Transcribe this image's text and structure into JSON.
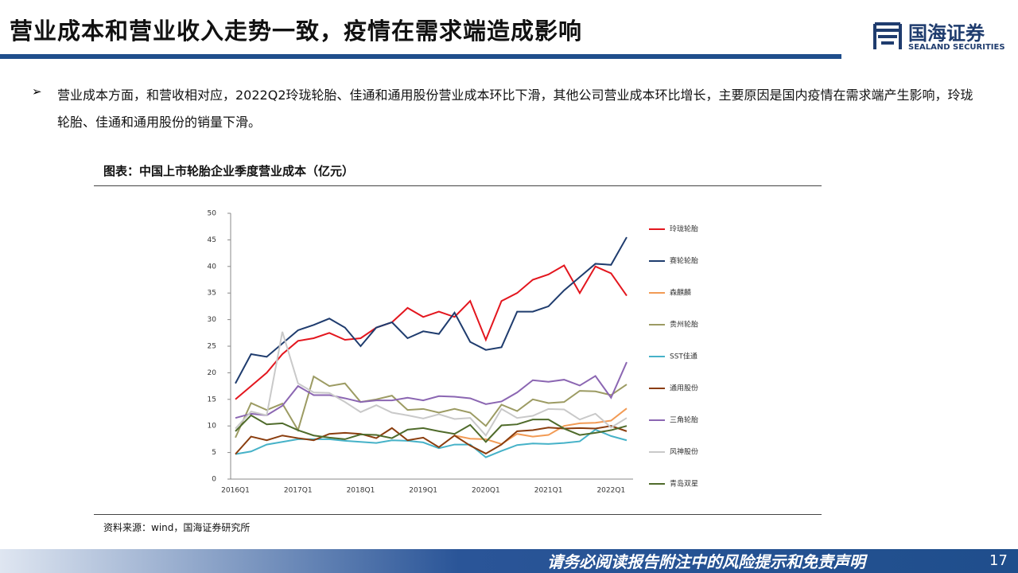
{
  "header": {
    "title": "营业成本和营业收入走势一致，疫情在需求端造成影响",
    "logo_cn": "国海证券",
    "logo_en": "SEALAND SECURITIES"
  },
  "bullet": "营业成本方面，和营收相对应，2022Q2玲珑轮胎、佳通和通用股份营业成本环比下滑，其他公司营业成本环比增长，主要原因是国内疫情在需求端产生影响，玲珑轮胎、佳通和通用股份的销量下滑。",
  "chart_caption": "图表：中国上市轮胎企业季度营业成本（亿元）",
  "source": "资料来源：wind，国海证券研究所",
  "footer": {
    "disclaimer": "请务必阅读报告附注中的风险提示和免责声明",
    "page": 17
  },
  "chart_data": {
    "type": "line",
    "categories": [
      "2016Q1",
      null,
      null,
      null,
      "2017Q1",
      null,
      null,
      null,
      "2018Q1",
      null,
      null,
      null,
      "2019Q1",
      null,
      null,
      null,
      "2020Q1",
      null,
      null,
      null,
      "2021Q1",
      null,
      null,
      null,
      "2022Q1",
      null
    ],
    "ylim": [
      0,
      50
    ],
    "yticks": [
      0,
      5,
      10,
      15,
      20,
      25,
      30,
      35,
      40,
      45,
      50
    ],
    "grid": false,
    "legend": "right",
    "series": [
      {
        "name": "玲珑轮胎",
        "color": "#e3161e",
        "values": [
          15,
          17.5,
          20,
          23.5,
          26,
          26.5,
          27.5,
          26.2,
          26.5,
          28.5,
          29.5,
          32.2,
          30.5,
          31.5,
          30.5,
          33.5,
          26.2,
          33.5,
          35,
          37.5,
          38.5,
          40.2,
          35,
          40,
          38.7,
          34.5
        ]
      },
      {
        "name": "赛轮轮胎",
        "color": "#1f3c6e",
        "values": [
          18,
          23.5,
          23,
          25.5,
          28,
          29,
          30.2,
          28.5,
          25,
          28.5,
          29.5,
          26.5,
          27.8,
          27.3,
          31.3,
          25.8,
          24.3,
          24.8,
          31.5,
          31.5,
          32.5,
          35.5,
          38,
          40.5,
          40.3,
          45.5
        ]
      },
      {
        "name": "森麒麟",
        "color": "#f29b55",
        "values": [
          null,
          null,
          null,
          null,
          null,
          null,
          null,
          null,
          null,
          null,
          null,
          null,
          null,
          null,
          8.2,
          7.6,
          7.5,
          6.6,
          8.5,
          8,
          8.3,
          10,
          10.5,
          10.6,
          11,
          13.3
        ]
      },
      {
        "name": "贵州轮胎",
        "color": "#9c9b63",
        "values": [
          7.8,
          14.3,
          13,
          14.2,
          9.2,
          19.3,
          17.5,
          18,
          14.5,
          15,
          15.7,
          13,
          13.2,
          12.5,
          13.2,
          12.5,
          10,
          14,
          12.8,
          15,
          14.3,
          14.5,
          16.6,
          16.5,
          15.8,
          17.8
        ]
      },
      {
        "name": "SST佳通",
        "color": "#46b2c8",
        "values": [
          4.7,
          5.2,
          6.5,
          7,
          7.5,
          7.5,
          7.5,
          7.2,
          7,
          6.8,
          7.3,
          7.2,
          6.9,
          5.8,
          6.5,
          6.5,
          4.1,
          5.3,
          6.4,
          6.7,
          6.6,
          6.8,
          7.1,
          9.3,
          8.1,
          7.3
        ]
      },
      {
        "name": "通用股份",
        "color": "#8a3d0e",
        "values": [
          4.7,
          8,
          7.3,
          8.2,
          7.7,
          7.3,
          8.5,
          8.7,
          8.5,
          7.7,
          9.6,
          7.3,
          7.8,
          6,
          8.2,
          6.3,
          4.8,
          6.5,
          9,
          9.2,
          9.7,
          9.5,
          9.6,
          9.5,
          10,
          9
        ]
      },
      {
        "name": "三角轮胎",
        "color": "#8b66b2",
        "values": [
          11.5,
          12.3,
          12,
          13.8,
          17.5,
          15.8,
          15.8,
          15.2,
          14.5,
          14.8,
          14.8,
          15.3,
          14.8,
          15.6,
          15.5,
          15.2,
          14.1,
          14.6,
          16.3,
          18.6,
          18.3,
          18.7,
          17.6,
          19.4,
          15.3,
          22
        ]
      },
      {
        "name": "风神股份",
        "color": "#c9c9c9",
        "values": [
          9.5,
          12.7,
          12,
          27.7,
          18,
          16.3,
          16.2,
          14.5,
          12.6,
          13.9,
          12.5,
          12,
          11.4,
          12.2,
          11.3,
          11.5,
          8.2,
          13.2,
          11.5,
          11.9,
          13.2,
          13.1,
          11.2,
          12.3,
          9.7,
          11.5
        ]
      },
      {
        "name": "青岛双星",
        "color": "#4f6b2b",
        "values": [
          9,
          12,
          10.3,
          10.5,
          9.2,
          8.2,
          7.8,
          7.5,
          8.4,
          8.3,
          7.7,
          9.3,
          9.6,
          9,
          8.5,
          10.2,
          7,
          10.1,
          10.3,
          11.2,
          11.2,
          9.5,
          8.3,
          8.7,
          9.2,
          10
        ]
      }
    ]
  }
}
